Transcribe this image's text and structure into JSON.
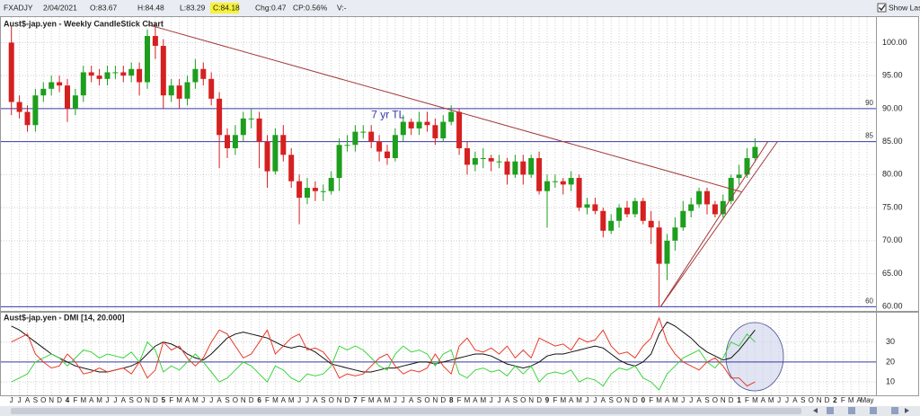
{
  "header": {
    "symbol": "FXADJY",
    "date": "2/04/2021",
    "open": "O:83.67",
    "high": "H:84.48",
    "low": "L:83.29",
    "close": "C:84.18",
    "change": "Chg:0.47",
    "change_pct": "CP:0.56%",
    "volume": "V:-",
    "show_last": "Show Last"
  },
  "chart_data": [
    {
      "type": "candlestick",
      "title": "Aust$-jap.yen - Weekly CandleStick Chart",
      "up_color": "#1e9e1e",
      "down_color": "#d62020",
      "open": [
        100,
        91,
        89.5,
        87.5,
        92,
        93,
        94,
        93.5,
        90,
        92,
        95.5,
        95,
        94.5,
        95.5,
        95.5,
        95,
        96,
        94,
        101,
        99.5,
        92,
        93.5,
        91.5,
        94,
        96,
        94.5,
        91.5,
        86,
        84,
        86,
        88.5,
        88.5,
        85,
        80.5,
        86,
        83,
        79,
        76.5,
        78,
        77.5,
        77.5,
        79.5,
        84.5,
        84.5,
        86.5,
        86.5,
        85,
        83.5,
        82.5,
        86,
        88,
        87,
        88,
        87.5,
        85.5,
        88,
        89.5,
        84,
        81.5,
        82.5,
        82.5,
        82,
        82,
        80,
        82,
        80,
        82.5,
        77.5,
        79,
        79,
        78.5,
        79.5,
        75,
        75.5,
        74.5,
        71.5,
        73,
        75,
        74,
        76,
        73,
        72,
        66.5,
        70,
        72,
        74.5,
        75.5,
        77.5,
        75.5,
        74,
        76,
        79.5,
        80,
        82.5,
        null,
        null,
        null,
        null,
        null,
        null,
        null,
        null,
        null,
        null,
        null,
        null,
        null,
        null
      ],
      "high": [
        102.5,
        92,
        90.5,
        93,
        94,
        95,
        95,
        94.5,
        93,
        96.5,
        96.5,
        96,
        96.5,
        96.5,
        96.5,
        97,
        97,
        102,
        102.8,
        100.5,
        94.5,
        94.5,
        95,
        97.5,
        97,
        95.5,
        92.5,
        87,
        87.5,
        89.5,
        90,
        89.5,
        86,
        87,
        87.5,
        84,
        80,
        79.5,
        79,
        78.5,
        80.5,
        85.5,
        86,
        87.5,
        87.5,
        87.5,
        86,
        84.5,
        87,
        89,
        88.5,
        89.5,
        89.5,
        88.5,
        89,
        90.5,
        90,
        85,
        83.5,
        84,
        83,
        83,
        82.5,
        83,
        83,
        83,
        83.5,
        80,
        80,
        79.5,
        80.5,
        80,
        76.5,
        76.5,
        75,
        74,
        75.5,
        76,
        76.5,
        76.5,
        74.5,
        73,
        71,
        73.5,
        76,
        76.5,
        78,
        78,
        76,
        77,
        80,
        81.5,
        84,
        85.5,
        null,
        null,
        null,
        null,
        null,
        null,
        null,
        null,
        null,
        null,
        null,
        null,
        null,
        null
      ],
      "low": [
        89,
        88.5,
        86.5,
        86.5,
        91,
        92,
        92.5,
        88,
        89,
        91,
        94,
        93.5,
        93.5,
        94.5,
        94,
        94,
        92,
        93,
        97.5,
        90,
        91,
        90,
        90.5,
        93,
        93.5,
        90.5,
        81,
        82.5,
        83,
        85,
        87,
        81,
        78,
        80,
        82,
        78,
        72.5,
        75.5,
        76,
        76,
        77,
        77.5,
        83.5,
        83.5,
        85.5,
        84,
        82,
        81.5,
        82,
        85,
        86,
        86,
        86.5,
        84.5,
        85,
        87.5,
        83,
        80,
        80.5,
        81,
        80.5,
        81,
        78.5,
        79.5,
        78.5,
        79.5,
        77,
        72,
        78,
        77,
        77.5,
        74.5,
        74,
        74,
        70.5,
        71,
        72,
        73.5,
        73.5,
        72.5,
        69.5,
        60,
        64,
        68.5,
        71.5,
        73.5,
        75,
        74,
        73.5,
        73.5,
        75.5,
        78.5,
        79.5,
        82,
        null,
        null,
        null,
        null,
        null,
        null,
        null,
        null,
        null,
        null,
        null,
        null,
        null,
        null
      ],
      "close": [
        91,
        89.5,
        87.5,
        92,
        93,
        94,
        93.5,
        90,
        92,
        95.5,
        95,
        94.5,
        95.5,
        95.5,
        95,
        96,
        94,
        101,
        99.5,
        92,
        93.5,
        91.5,
        94,
        96,
        94.5,
        91.5,
        86,
        84,
        86,
        88.5,
        88.5,
        85,
        80.5,
        86,
        83,
        79,
        76.5,
        78,
        77.5,
        77.5,
        79.5,
        84.5,
        84.5,
        86.5,
        86.5,
        85,
        83.5,
        82.5,
        86,
        88,
        87,
        88,
        87.5,
        85.5,
        88,
        89.5,
        84,
        81.5,
        82.5,
        82.5,
        82,
        82,
        80,
        82,
        80,
        82.5,
        77.5,
        79,
        79,
        78.5,
        79.5,
        75,
        75.5,
        74.5,
        71.5,
        73,
        75,
        74,
        76,
        73,
        72,
        66.5,
        70,
        72,
        74.5,
        75.5,
        77.5,
        75.5,
        74,
        76,
        79.5,
        80,
        82.5,
        84.2,
        null,
        null,
        null,
        null,
        null,
        null,
        null,
        null,
        null,
        null,
        null,
        null,
        null,
        null
      ],
      "ylim": [
        59.5,
        104
      ],
      "yticks": [
        {
          "value": 60,
          "label": "60.00"
        },
        {
          "value": 65,
          "label": "65.00"
        },
        {
          "value": 70,
          "label": "70.00"
        },
        {
          "value": 75,
          "label": "75.00"
        },
        {
          "value": 80,
          "label": "80.00"
        },
        {
          "value": 85,
          "label": "85.00"
        },
        {
          "value": 90,
          "label": "90.00"
        },
        {
          "value": 95,
          "label": "95.00"
        },
        {
          "value": 100,
          "label": "100.00"
        }
      ],
      "grid": true,
      "hlines": [
        90,
        85,
        60
      ],
      "hline_color": "#3a3aa8",
      "trend_lines": [
        {
          "from": [
            17.1,
            102.7
          ],
          "to": [
            91.3,
            77.4
          ]
        },
        {
          "from": [
            81.2,
            60
          ],
          "to": [
            95.8,
            85
          ]
        },
        {
          "from": [
            81.2,
            60
          ],
          "to": [
            94.6,
            85
          ]
        }
      ],
      "trend_color": "#a33a3a",
      "annotation": {
        "text": "7 yr TL",
        "x": 45,
        "y": 89
      }
    },
    {
      "type": "line",
      "title": "Aust$-jap.yen - DMI [14, 20.000]",
      "categories": [
        "J",
        "J",
        "A",
        "S",
        "O",
        "N",
        "D",
        "4",
        "F",
        "M",
        "A",
        "M",
        "J",
        "J",
        "A",
        "S",
        "O",
        "N",
        "D",
        "5",
        "F",
        "M",
        "A",
        "M",
        "J",
        "J",
        "A",
        "S",
        "O",
        "N",
        "D",
        "6",
        "F",
        "M",
        "A",
        "M",
        "J",
        "J",
        "A",
        "S",
        "O",
        "N",
        "D",
        "7",
        "F",
        "M",
        "A",
        "M",
        "J",
        "J",
        "A",
        "S",
        "O",
        "N",
        "D",
        "8",
        "F",
        "M",
        "A",
        "M",
        "J",
        "J",
        "A",
        "S",
        "O",
        "N",
        "D",
        "9",
        "F",
        "M",
        "A",
        "M",
        "J",
        "J",
        "A",
        "S",
        "O",
        "N",
        "D",
        "0",
        "F",
        "M",
        "A",
        "M",
        "J",
        "J",
        "A",
        "S",
        "O",
        "N",
        "D",
        "1",
        "F",
        "M",
        "A",
        "M",
        "J",
        "J",
        "A",
        "S",
        "O",
        "N",
        "D",
        "2",
        "F",
        "M",
        "A",
        "May"
      ],
      "series": [
        {
          "color": "#111111",
          "values": [
            38,
            36,
            33,
            30,
            27,
            24,
            22,
            20,
            18,
            17,
            16,
            15,
            15,
            16,
            17,
            18,
            20,
            24,
            28,
            30,
            29,
            27,
            24,
            22,
            21,
            24,
            28,
            32,
            34,
            35,
            34,
            33,
            32,
            30,
            28,
            27,
            28,
            27,
            25,
            22,
            19,
            18,
            17,
            16,
            15,
            15,
            16,
            17,
            17,
            18,
            19,
            20,
            20,
            19,
            20,
            21,
            22,
            23,
            24,
            24,
            23,
            21,
            19,
            18,
            17,
            18,
            20,
            23,
            24,
            24,
            25,
            26,
            27,
            28,
            27,
            24,
            21,
            19,
            18,
            20,
            24,
            34,
            40,
            38,
            35,
            32,
            28,
            25,
            23,
            21,
            22,
            26,
            31,
            36,
            null,
            null,
            null,
            null,
            null,
            null,
            null,
            null,
            null,
            null,
            null,
            null,
            null,
            null
          ]
        },
        {
          "color": "#3ed43e",
          "values": [
            10,
            12,
            14,
            20,
            22,
            24,
            22,
            18,
            22,
            26,
            25,
            22,
            24,
            23,
            22,
            25,
            20,
            30,
            26,
            15,
            18,
            16,
            20,
            24,
            20,
            15,
            10,
            12,
            16,
            20,
            18,
            14,
            10,
            18,
            16,
            12,
            10,
            14,
            13,
            14,
            18,
            28,
            26,
            28,
            26,
            22,
            18,
            16,
            24,
            28,
            25,
            26,
            24,
            18,
            24,
            26,
            14,
            12,
            16,
            17,
            15,
            16,
            13,
            18,
            14,
            18,
            10,
            14,
            15,
            14,
            16,
            10,
            12,
            11,
            8,
            14,
            17,
            16,
            18,
            12,
            10,
            6,
            14,
            18,
            22,
            24,
            26,
            20,
            17,
            22,
            30,
            28,
            34,
            30,
            null,
            null,
            null,
            null,
            null,
            null,
            null,
            null,
            null,
            null,
            null,
            null,
            null,
            null
          ]
        },
        {
          "color": "#e83a2a",
          "values": [
            30,
            32,
            34,
            24,
            20,
            17,
            18,
            24,
            20,
            14,
            15,
            17,
            15,
            16,
            17,
            14,
            20,
            12,
            16,
            30,
            26,
            28,
            22,
            18,
            22,
            30,
            36,
            34,
            28,
            22,
            24,
            30,
            36,
            24,
            28,
            32,
            34,
            26,
            27,
            25,
            20,
            12,
            14,
            13,
            14,
            18,
            22,
            24,
            18,
            14,
            16,
            15,
            17,
            24,
            18,
            14,
            28,
            32,
            26,
            25,
            27,
            24,
            28,
            22,
            26,
            22,
            32,
            30,
            28,
            29,
            26,
            32,
            30,
            31,
            36,
            28,
            24,
            25,
            22,
            28,
            32,
            42,
            30,
            24,
            20,
            18,
            16,
            20,
            22,
            18,
            12,
            12,
            8,
            10,
            null,
            null,
            null,
            null,
            null,
            null,
            null,
            null,
            null,
            null,
            null,
            null,
            null,
            null
          ]
        }
      ],
      "ylim": [
        3.3,
        44.7
      ],
      "yticks": [
        10,
        20,
        30
      ],
      "grid": true,
      "level": 20,
      "level_color": "#3a3aa8"
    }
  ]
}
